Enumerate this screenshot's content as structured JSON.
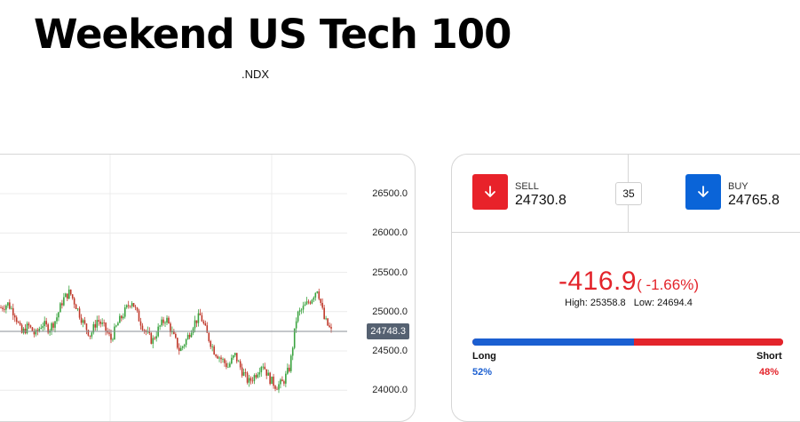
{
  "header": {
    "title": "Weekend US Tech 100",
    "symbol": ".NDX"
  },
  "chart": {
    "y_ticks": [
      "26500.0",
      "26000.0",
      "25500.0",
      "25000.0",
      "24500.0",
      "24000.0"
    ],
    "current_price_label": "24748.3",
    "colors": {
      "up": "#3aa33f",
      "down": "#c0392b",
      "price_tag": "#556171"
    }
  },
  "chart_data": {
    "type": "candlestick",
    "ylim": [
      23900,
      26700
    ],
    "grid": true,
    "current_price": 24748.3,
    "close_path": [
      25050,
      25100,
      24980,
      24720,
      24820,
      24700,
      24850,
      24780,
      24900,
      25150,
      25250,
      25060,
      24850,
      24700,
      24900,
      24800,
      24650,
      24850,
      25000,
      25150,
      24920,
      24750,
      24620,
      24800,
      24920,
      24700,
      24500,
      24650,
      24850,
      24950,
      24700,
      24500,
      24400,
      24300,
      24450,
      24250,
      24100,
      24200,
      24350,
      24150,
      24050,
      24100,
      24300,
      24950,
      25050,
      25150,
      25300,
      24900,
      24750
    ]
  },
  "trade": {
    "sell_label": "SELL",
    "sell_price": "24730.8",
    "buy_label": "BUY",
    "buy_price": "24765.8",
    "spread": "35",
    "change": "-416.9",
    "change_pct": "( -1.66%)",
    "high": "High: 25358.8",
    "low": "Low: 24694.4",
    "long_label": "Long",
    "long_pct": "52%",
    "long_value": 52,
    "short_label": "Short",
    "short_pct": "48%",
    "short_value": 48,
    "colors": {
      "sell": "#e8222a",
      "buy": "#0a64d8",
      "long": "#1b5fd1",
      "short": "#e3242b"
    }
  }
}
